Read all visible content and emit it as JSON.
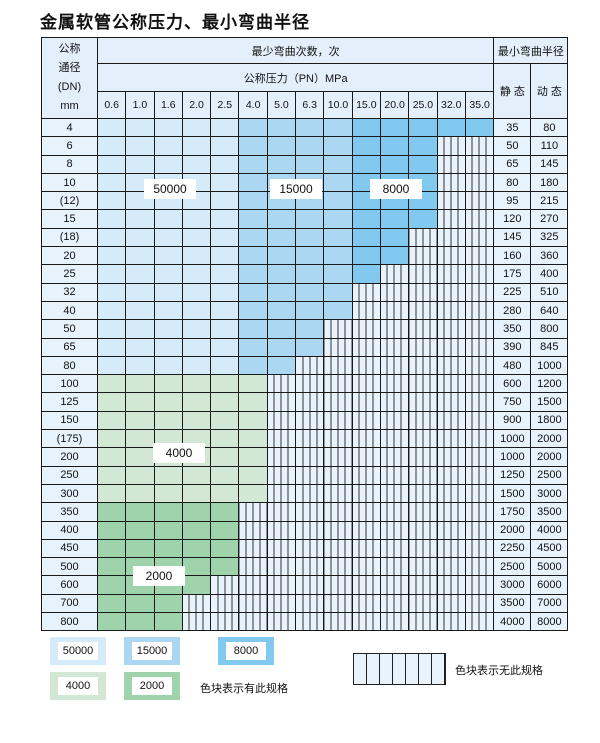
{
  "title": "金属软管公称压力、最小弯曲半径",
  "header": {
    "dn_label_lines": [
      "公称",
      "通径",
      "(DN)",
      "mm"
    ],
    "cycles_label": "最少弯曲次数，次",
    "pressure_label": "公称压力（PN）MPa",
    "radius_label": "最小弯曲半径",
    "static_label": "静 态",
    "dynamic_label": "动 态",
    "pressures": [
      "0.6",
      "1.0",
      "1.6",
      "2.0",
      "2.5",
      "4.0",
      "5.0",
      "6.3",
      "10.0",
      "15.0",
      "20.0",
      "25.0",
      "32.0",
      "35.0"
    ]
  },
  "colors": {
    "50000": "#d6ebf9",
    "15000": "#abd7f3",
    "8000": "#82c9ef",
    "4000": "#d3e8d4",
    "2000": "#9fd3ac",
    "no_spec": "#e9f3fc"
  },
  "rows": [
    {
      "dn": "4",
      "static": "35",
      "dynamic": "80",
      "cycles": [
        50000,
        50000,
        50000,
        50000,
        50000,
        15000,
        15000,
        15000,
        15000,
        8000,
        8000,
        8000,
        8000,
        8000
      ]
    },
    {
      "dn": "6",
      "static": "50",
      "dynamic": "110",
      "cycles": [
        50000,
        50000,
        50000,
        50000,
        50000,
        15000,
        15000,
        15000,
        15000,
        8000,
        8000,
        8000,
        null,
        null
      ]
    },
    {
      "dn": "8",
      "static": "65",
      "dynamic": "145",
      "cycles": [
        50000,
        50000,
        50000,
        50000,
        50000,
        15000,
        15000,
        15000,
        15000,
        8000,
        8000,
        8000,
        null,
        null
      ]
    },
    {
      "dn": "10",
      "static": "80",
      "dynamic": "180",
      "cycles": [
        50000,
        50000,
        50000,
        50000,
        50000,
        15000,
        15000,
        15000,
        15000,
        8000,
        8000,
        8000,
        null,
        null
      ]
    },
    {
      "dn": "(12)",
      "static": "95",
      "dynamic": "215",
      "cycles": [
        50000,
        50000,
        50000,
        50000,
        50000,
        15000,
        15000,
        15000,
        15000,
        8000,
        8000,
        8000,
        null,
        null
      ]
    },
    {
      "dn": "15",
      "static": "120",
      "dynamic": "270",
      "cycles": [
        50000,
        50000,
        50000,
        50000,
        50000,
        15000,
        15000,
        15000,
        15000,
        8000,
        8000,
        8000,
        null,
        null
      ]
    },
    {
      "dn": "(18)",
      "static": "145",
      "dynamic": "325",
      "cycles": [
        50000,
        50000,
        50000,
        50000,
        50000,
        15000,
        15000,
        15000,
        15000,
        8000,
        8000,
        null,
        null,
        null
      ]
    },
    {
      "dn": "20",
      "static": "160",
      "dynamic": "360",
      "cycles": [
        50000,
        50000,
        50000,
        50000,
        50000,
        15000,
        15000,
        15000,
        15000,
        8000,
        8000,
        null,
        null,
        null
      ]
    },
    {
      "dn": "25",
      "static": "175",
      "dynamic": "400",
      "cycles": [
        50000,
        50000,
        50000,
        50000,
        50000,
        15000,
        15000,
        15000,
        15000,
        8000,
        null,
        null,
        null,
        null
      ]
    },
    {
      "dn": "32",
      "static": "225",
      "dynamic": "510",
      "cycles": [
        50000,
        50000,
        50000,
        50000,
        50000,
        15000,
        15000,
        15000,
        15000,
        null,
        null,
        null,
        null,
        null
      ]
    },
    {
      "dn": "40",
      "static": "280",
      "dynamic": "640",
      "cycles": [
        50000,
        50000,
        50000,
        50000,
        50000,
        15000,
        15000,
        15000,
        15000,
        null,
        null,
        null,
        null,
        null
      ]
    },
    {
      "dn": "50",
      "static": "350",
      "dynamic": "800",
      "cycles": [
        50000,
        50000,
        50000,
        50000,
        50000,
        15000,
        15000,
        15000,
        null,
        null,
        null,
        null,
        null,
        null
      ]
    },
    {
      "dn": "65",
      "static": "390",
      "dynamic": "845",
      "cycles": [
        50000,
        50000,
        50000,
        50000,
        50000,
        15000,
        15000,
        15000,
        null,
        null,
        null,
        null,
        null,
        null
      ]
    },
    {
      "dn": "80",
      "static": "480",
      "dynamic": "1000",
      "cycles": [
        50000,
        50000,
        50000,
        50000,
        50000,
        15000,
        15000,
        null,
        null,
        null,
        null,
        null,
        null,
        null
      ]
    },
    {
      "dn": "100",
      "static": "600",
      "dynamic": "1200",
      "cycles": [
        4000,
        4000,
        4000,
        4000,
        4000,
        4000,
        null,
        null,
        null,
        null,
        null,
        null,
        null,
        null
      ]
    },
    {
      "dn": "125",
      "static": "750",
      "dynamic": "1500",
      "cycles": [
        4000,
        4000,
        4000,
        4000,
        4000,
        4000,
        null,
        null,
        null,
        null,
        null,
        null,
        null,
        null
      ]
    },
    {
      "dn": "150",
      "static": "900",
      "dynamic": "1800",
      "cycles": [
        4000,
        4000,
        4000,
        4000,
        4000,
        4000,
        null,
        null,
        null,
        null,
        null,
        null,
        null,
        null
      ]
    },
    {
      "dn": "(175)",
      "static": "1000",
      "dynamic": "2000",
      "cycles": [
        4000,
        4000,
        4000,
        4000,
        4000,
        4000,
        null,
        null,
        null,
        null,
        null,
        null,
        null,
        null
      ]
    },
    {
      "dn": "200",
      "static": "1000",
      "dynamic": "2000",
      "cycles": [
        4000,
        4000,
        4000,
        4000,
        4000,
        4000,
        null,
        null,
        null,
        null,
        null,
        null,
        null,
        null
      ]
    },
    {
      "dn": "250",
      "static": "1250",
      "dynamic": "2500",
      "cycles": [
        4000,
        4000,
        4000,
        4000,
        4000,
        4000,
        null,
        null,
        null,
        null,
        null,
        null,
        null,
        null
      ]
    },
    {
      "dn": "300",
      "static": "1500",
      "dynamic": "3000",
      "cycles": [
        4000,
        4000,
        4000,
        4000,
        4000,
        4000,
        null,
        null,
        null,
        null,
        null,
        null,
        null,
        null
      ]
    },
    {
      "dn": "350",
      "static": "1750",
      "dynamic": "3500",
      "cycles": [
        2000,
        2000,
        2000,
        2000,
        2000,
        null,
        null,
        null,
        null,
        null,
        null,
        null,
        null,
        null
      ]
    },
    {
      "dn": "400",
      "static": "2000",
      "dynamic": "4000",
      "cycles": [
        2000,
        2000,
        2000,
        2000,
        2000,
        null,
        null,
        null,
        null,
        null,
        null,
        null,
        null,
        null
      ]
    },
    {
      "dn": "450",
      "static": "2250",
      "dynamic": "4500",
      "cycles": [
        2000,
        2000,
        2000,
        2000,
        2000,
        null,
        null,
        null,
        null,
        null,
        null,
        null,
        null,
        null
      ]
    },
    {
      "dn": "500",
      "static": "2500",
      "dynamic": "5000",
      "cycles": [
        2000,
        2000,
        2000,
        2000,
        2000,
        null,
        null,
        null,
        null,
        null,
        null,
        null,
        null,
        null
      ]
    },
    {
      "dn": "600",
      "static": "3000",
      "dynamic": "6000",
      "cycles": [
        2000,
        2000,
        2000,
        2000,
        null,
        null,
        null,
        null,
        null,
        null,
        null,
        null,
        null,
        null
      ]
    },
    {
      "dn": "700",
      "static": "3500",
      "dynamic": "7000",
      "cycles": [
        2000,
        2000,
        2000,
        null,
        null,
        null,
        null,
        null,
        null,
        null,
        null,
        null,
        null,
        null
      ]
    },
    {
      "dn": "800",
      "static": "4000",
      "dynamic": "8000",
      "cycles": [
        2000,
        2000,
        2000,
        null,
        null,
        null,
        null,
        null,
        null,
        null,
        null,
        null,
        null,
        null
      ]
    }
  ],
  "region_labels": [
    "50000",
    "15000",
    "8000",
    "4000",
    "2000"
  ],
  "legend": {
    "items": [
      "50000",
      "15000",
      "8000",
      "4000",
      "2000"
    ],
    "has_spec_note": "色块表示有此规格",
    "no_spec_note": "色块表示无此规格"
  }
}
